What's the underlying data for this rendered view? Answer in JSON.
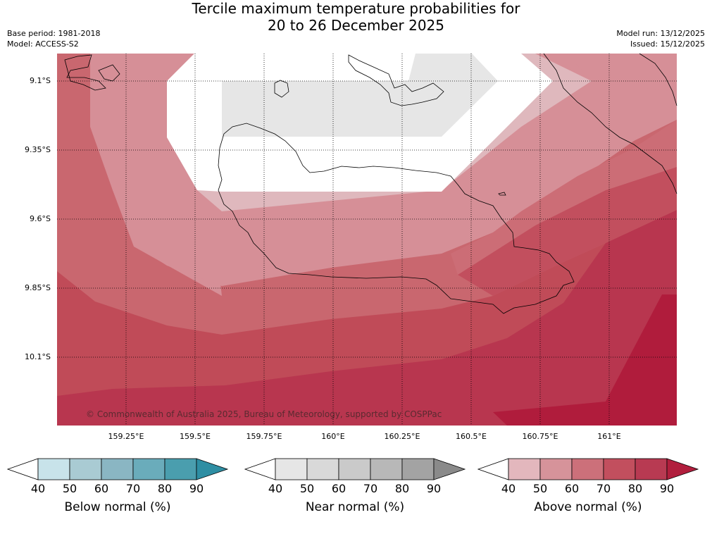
{
  "title_line1": "Tercile maximum temperature probabilities for",
  "title_line2": "20 to 26 December 2025",
  "base_period": "Base period: 1981-2018",
  "model": "Model: ACCESS-S2",
  "model_run": "Model run: 13/12/2025",
  "issued": "Issued: 15/12/2025",
  "copyright": "© Commonwealth of Australia 2025, Bureau of Meteorology, supported by COSPPac",
  "lat_labels": [
    "9.1°S",
    "9.35°S",
    "9.6°S",
    "9.85°S",
    "10.1°S"
  ],
  "lon_labels": [
    "159.25°E",
    "159.5°E",
    "159.75°E",
    "160°E",
    "160.25°E",
    "160.5°E",
    "160.75°E",
    "161°E"
  ],
  "colorbars": [
    {
      "title": "Below normal (%)",
      "ticks": [
        "40",
        "50",
        "60",
        "70",
        "80",
        "90"
      ],
      "colors": [
        "#ffffff",
        "#c8e3ea",
        "#a9cbd3",
        "#8ab6c3",
        "#6aacbb",
        "#4a9eae",
        "#2e8ea3"
      ]
    },
    {
      "title": "Near normal (%)",
      "ticks": [
        "40",
        "50",
        "60",
        "70",
        "80",
        "90"
      ],
      "colors": [
        "#ffffff",
        "#e6e6e6",
        "#d9d9d9",
        "#cacaca",
        "#b8b8b8",
        "#a3a3a3",
        "#8a8a8a"
      ]
    },
    {
      "title": "Above normal (%)",
      "ticks": [
        "40",
        "50",
        "60",
        "70",
        "80",
        "90"
      ],
      "colors": [
        "#ffffff",
        "#e3b7bd",
        "#d6939a",
        "#cc707a",
        "#c24f5e",
        "#b83a52",
        "#b11e3d"
      ]
    }
  ]
}
